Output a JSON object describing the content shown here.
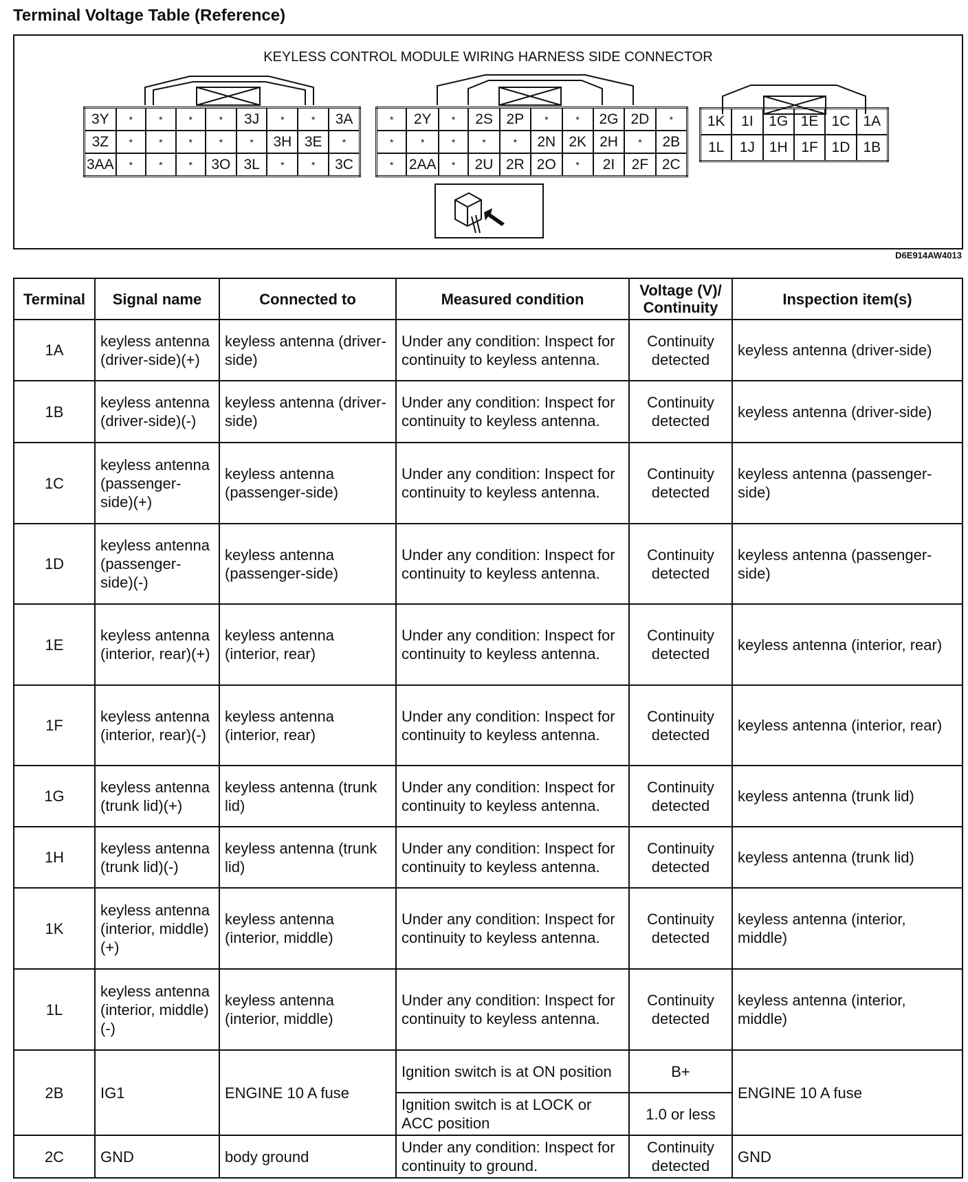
{
  "title": "Terminal Voltage Table (Reference)",
  "diagram": {
    "title": "KEYLESS CONTROL MODULE WIRING HARNESS SIDE CONNECTOR",
    "code": "D6E914AW4013",
    "connector3": [
      [
        "3Y",
        "*",
        "*",
        "*",
        "*",
        "3J",
        "*",
        "*",
        "3A"
      ],
      [
        "3Z",
        "*",
        "*",
        "*",
        "*",
        "*",
        "3H",
        "3E",
        "*"
      ],
      [
        "3AA",
        "*",
        "*",
        "*",
        "3O",
        "3L",
        "*",
        "*",
        "3C"
      ]
    ],
    "connector2": [
      [
        "*",
        "2Y",
        "*",
        "2S",
        "2P",
        "*",
        "*",
        "2G",
        "2D",
        "*"
      ],
      [
        "*",
        "*",
        "*",
        "*",
        "*",
        "2N",
        "2K",
        "2H",
        "*",
        "2B"
      ],
      [
        "*",
        "2AA",
        "*",
        "2U",
        "2R",
        "2O",
        "*",
        "2I",
        "2F",
        "2C"
      ]
    ],
    "connector1": [
      [
        "1K",
        "1I",
        "1G",
        "1E",
        "1C",
        "1A"
      ],
      [
        "1L",
        "1J",
        "1H",
        "1F",
        "1D",
        "1B"
      ]
    ]
  },
  "table": {
    "headers": [
      "Terminal",
      "Signal name",
      "Connected to",
      "Measured condition",
      "Voltage (V)/ Continuity",
      "Inspection item(s)"
    ],
    "rows": [
      {
        "terminal": "1A",
        "signal": "keyless antenna (driver-side)(+)",
        "connected": "keyless antenna (driver-side)",
        "condition": "Under any condition: Inspect for continuity to keyless antenna.",
        "value": "Continuity detected",
        "inspection": "keyless antenna (driver-side)"
      },
      {
        "terminal": "1B",
        "signal": "keyless antenna (driver-side)(-)",
        "connected": "keyless antenna (driver-side)",
        "condition": "Under any condition: Inspect for continuity to keyless antenna.",
        "value": "Continuity detected",
        "inspection": "keyless antenna (driver-side)"
      },
      {
        "terminal": "1C",
        "signal": "keyless antenna (passenger-side)(+)",
        "connected": "keyless antenna (passenger-side)",
        "condition": "Under any condition: Inspect for continuity to keyless antenna.",
        "value": "Continuity detected",
        "inspection": "keyless antenna (passenger-side)"
      },
      {
        "terminal": "1D",
        "signal": "keyless antenna (passenger-side)(-)",
        "connected": "keyless antenna (passenger-side)",
        "condition": "Under any condition: Inspect for continuity to keyless antenna.",
        "value": "Continuity detected",
        "inspection": "keyless antenna (passenger-side)"
      },
      {
        "terminal": "1E",
        "signal": "keyless antenna (interior, rear)(+)",
        "connected": "keyless antenna (interior, rear)",
        "condition": "Under any condition: Inspect for continuity to keyless antenna.",
        "value": "Continuity detected",
        "inspection": "keyless antenna (interior, rear)"
      },
      {
        "terminal": "1F",
        "signal": "keyless antenna (interior, rear)(-)",
        "connected": "keyless antenna (interior, rear)",
        "condition": "Under any condition: Inspect for continuity to keyless antenna.",
        "value": "Continuity detected",
        "inspection": "keyless antenna (interior, rear)"
      },
      {
        "terminal": "1G",
        "signal": "keyless antenna (trunk lid)(+)",
        "connected": "keyless antenna (trunk lid)",
        "condition": "Under any condition: Inspect for continuity to keyless antenna.",
        "value": "Continuity detected",
        "inspection": "keyless antenna (trunk lid)"
      },
      {
        "terminal": "1H",
        "signal": "keyless antenna (trunk lid)(-)",
        "connected": "keyless antenna (trunk lid)",
        "condition": "Under any condition: Inspect for continuity to keyless antenna.",
        "value": "Continuity detected",
        "inspection": "keyless antenna (trunk lid)"
      },
      {
        "terminal": "1K",
        "signal": "keyless antenna (interior, middle)(+)",
        "connected": "keyless antenna (interior, middle)",
        "condition": "Under any condition: Inspect for continuity to keyless antenna.",
        "value": "Continuity detected",
        "inspection": "keyless antenna (interior, middle)"
      },
      {
        "terminal": "1L",
        "signal": "keyless antenna (interior, middle)(-)",
        "connected": "keyless antenna (interior, middle)",
        "condition": "Under any condition: Inspect for continuity to keyless antenna.",
        "value": "Continuity detected",
        "inspection": "keyless antenna (interior, middle)"
      }
    ],
    "row_2b": {
      "terminal": "2B",
      "signal": "IG1",
      "connected": "ENGINE 10 A fuse",
      "condition1": "Ignition switch is at ON position",
      "value1": "B+",
      "condition2": "Ignition switch is at LOCK or ACC position",
      "value2": "1.0 or less",
      "inspection": "ENGINE 10 A fuse"
    },
    "row_2c": {
      "terminal": "2C",
      "signal": "GND",
      "connected": "body ground",
      "condition": "Under any condition: Inspect for continuity to ground.",
      "value": "Continuity detected",
      "inspection": "GND"
    }
  }
}
